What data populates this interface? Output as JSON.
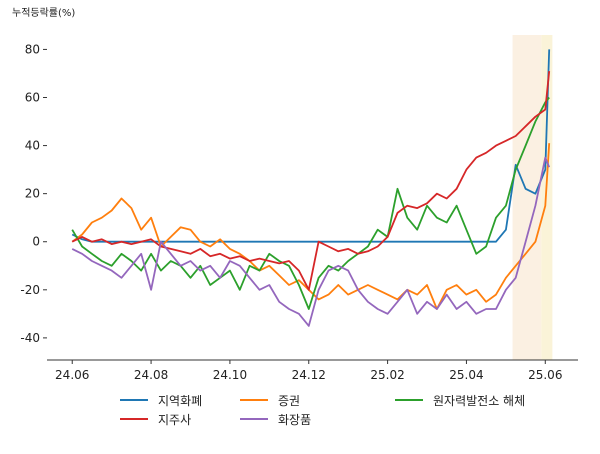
{
  "chart_data": {
    "type": "line",
    "ylabel": "누적등락률(%)",
    "x": [
      0,
      0.25,
      0.5,
      0.75,
      1,
      1.25,
      1.5,
      1.75,
      2,
      2.25,
      2.5,
      2.75,
      3,
      3.25,
      3.5,
      3.75,
      4,
      4.25,
      4.5,
      4.75,
      5,
      5.25,
      5.5,
      5.75,
      6,
      6.25,
      6.5,
      6.75,
      7,
      7.25,
      7.5,
      7.75,
      8,
      8.25,
      8.5,
      8.75,
      9,
      9.25,
      9.5,
      9.75,
      10,
      10.25,
      10.5,
      10.75,
      11,
      11.25,
      11.5,
      11.75,
      12,
      12.1
    ],
    "series": [
      {
        "name": "지역화폐",
        "color": "#1f77b4",
        "values": [
          3,
          1,
          0,
          0,
          0,
          0,
          0,
          0,
          0,
          0,
          0,
          0,
          0,
          0,
          0,
          0,
          0,
          0,
          0,
          0,
          0,
          0,
          0,
          0,
          0,
          0,
          0,
          0,
          0,
          0,
          0,
          0,
          0,
          0,
          0,
          0,
          0,
          0,
          0,
          0,
          0,
          0,
          0,
          0,
          5,
          32,
          22,
          20,
          30,
          80
        ]
      },
      {
        "name": "증권",
        "color": "#ff7f0e",
        "values": [
          0,
          3,
          8,
          10,
          13,
          18,
          14,
          5,
          10,
          -2,
          2,
          6,
          5,
          0,
          -2,
          1,
          -3,
          -5,
          -8,
          -12,
          -10,
          -14,
          -18,
          -16,
          -20,
          -24,
          -22,
          -18,
          -22,
          -20,
          -18,
          -20,
          -22,
          -24,
          -20,
          -22,
          -18,
          -28,
          -20,
          -18,
          -22,
          -20,
          -25,
          -22,
          -15,
          -10,
          -5,
          0,
          15,
          41
        ]
      },
      {
        "name": "원자력발전소 해체",
        "color": "#2ca02c",
        "values": [
          5,
          -2,
          -5,
          -8,
          -10,
          -5,
          -8,
          -12,
          -5,
          -12,
          -8,
          -10,
          -15,
          -10,
          -18,
          -15,
          -12,
          -20,
          -10,
          -12,
          -5,
          -8,
          -10,
          -18,
          -28,
          -15,
          -10,
          -12,
          -8,
          -5,
          -2,
          5,
          2,
          22,
          10,
          5,
          15,
          10,
          8,
          15,
          5,
          -5,
          -2,
          10,
          15,
          30,
          40,
          50,
          58,
          60
        ]
      },
      {
        "name": "지주사",
        "color": "#d62728",
        "values": [
          0,
          2,
          0,
          1,
          -1,
          0,
          -1,
          0,
          1,
          -2,
          -3,
          -4,
          -5,
          -3,
          -6,
          -5,
          -7,
          -6,
          -8,
          -7,
          -8,
          -9,
          -8,
          -12,
          -20,
          0,
          -2,
          -4,
          -3,
          -5,
          -4,
          -2,
          2,
          12,
          15,
          14,
          16,
          20,
          18,
          22,
          30,
          35,
          37,
          40,
          42,
          44,
          48,
          52,
          55,
          71
        ]
      },
      {
        "name": "화장품",
        "color": "#9467bd",
        "values": [
          -3,
          -5,
          -8,
          -10,
          -12,
          -15,
          -10,
          -5,
          -20,
          0,
          -5,
          -10,
          -8,
          -12,
          -10,
          -15,
          -8,
          -10,
          -15,
          -20,
          -18,
          -25,
          -28,
          -30,
          -35,
          -20,
          -12,
          -10,
          -12,
          -20,
          -25,
          -28,
          -30,
          -25,
          -20,
          -30,
          -25,
          -28,
          -22,
          -28,
          -25,
          -30,
          -28,
          -28,
          -20,
          -15,
          0,
          15,
          35,
          31
        ]
      }
    ],
    "xlim": [
      -0.64,
      12.83
    ],
    "ylim": [
      -49.2,
      86
    ],
    "xticks": [
      {
        "value": 0,
        "label": "24.06"
      },
      {
        "value": 2,
        "label": "24.08"
      },
      {
        "value": 4,
        "label": "24.10"
      },
      {
        "value": 6,
        "label": "24.12"
      },
      {
        "value": 8,
        "label": "25.02"
      },
      {
        "value": 10,
        "label": "25.04"
      },
      {
        "value": 12,
        "label": "25.06"
      }
    ],
    "yticks": [
      -40,
      -20,
      0,
      20,
      40,
      60,
      80
    ],
    "highlight_spans": [
      {
        "start": 11.17,
        "end": 11.9,
        "color": "#fbf0e2"
      },
      {
        "start": 11.9,
        "end": 12.18,
        "color": "#faf3d8"
      }
    ]
  }
}
